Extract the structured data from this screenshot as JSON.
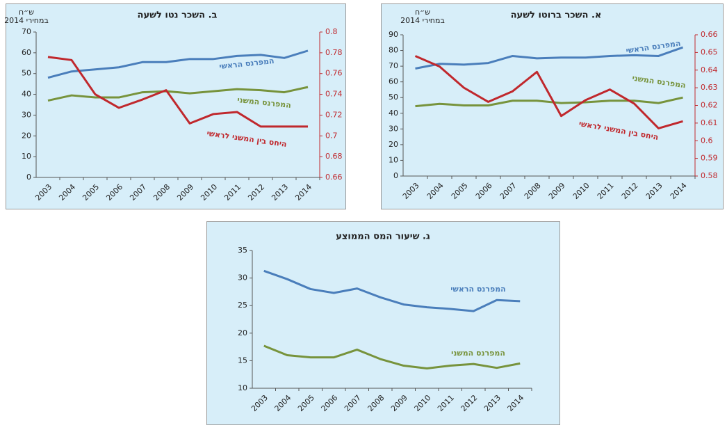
{
  "chart_data": [
    {
      "type": "line",
      "title": "א. השכר ברוטו לשעה",
      "ylabel": [
        "ש״ח",
        "במחירי 2014"
      ],
      "categories": [
        "2003",
        "2004",
        "2005",
        "2006",
        "2007",
        "2008",
        "2009",
        "2010",
        "2011",
        "2012",
        "2013",
        "2014"
      ],
      "series": [
        {
          "name": "המפרנס הראשי",
          "color": "#4a7ebb",
          "values": [
            68.5,
            71.5,
            71,
            72,
            76.5,
            75,
            75.5,
            75.5,
            76.5,
            77,
            76.5,
            82
          ]
        },
        {
          "name": "המפרנס המשני",
          "color": "#77933c",
          "values": [
            44.5,
            46,
            45,
            45,
            48,
            48,
            46.5,
            47,
            48,
            48,
            46.5,
            50
          ]
        },
        {
          "name": "היחס בין המשני לראשי",
          "color": "#c0282d",
          "axis": "y2",
          "values": [
            0.648,
            0.642,
            0.63,
            0.622,
            0.628,
            0.639,
            0.614,
            0.623,
            0.629,
            0.621,
            0.607,
            0.611
          ]
        }
      ],
      "ylim": [
        0,
        90
      ],
      "yticks": [
        0,
        10,
        20,
        30,
        40,
        50,
        60,
        70,
        80,
        90
      ],
      "y2lim": [
        0.58,
        0.66
      ],
      "y2ticks": [
        0.58,
        0.59,
        0.6,
        0.61,
        0.62,
        0.63,
        0.64,
        0.65,
        0.66
      ]
    },
    {
      "type": "line",
      "title": "ב. השכר נטו לשעה",
      "ylabel": [
        "ש״ח",
        "במחירי 2014"
      ],
      "categories": [
        "2003",
        "2004",
        "2005",
        "2006",
        "2007",
        "2008",
        "2009",
        "2010",
        "2011",
        "2012",
        "2013",
        "2014"
      ],
      "series": [
        {
          "name": "המפרנס הראשי",
          "color": "#4a7ebb",
          "values": [
            48,
            51,
            52,
            53,
            55.5,
            55.5,
            57,
            57,
            58.5,
            59,
            57.5,
            61
          ]
        },
        {
          "name": "המפרנס המשני",
          "color": "#77933c",
          "values": [
            37,
            39.5,
            38.5,
            38.5,
            41,
            41.5,
            40.5,
            41.5,
            42.5,
            42,
            41,
            43.5
          ]
        },
        {
          "name": "היחס בין המשני לראשי",
          "color": "#c0282d",
          "axis": "y2",
          "values": [
            0.776,
            0.773,
            0.74,
            0.727,
            0.735,
            0.744,
            0.712,
            0.721,
            0.723,
            0.709,
            0.709,
            0.709
          ]
        }
      ],
      "ylim": [
        0,
        70
      ],
      "yticks": [
        0,
        10,
        20,
        30,
        40,
        50,
        60,
        70
      ],
      "y2lim": [
        0.66,
        0.8
      ],
      "y2ticks": [
        0.66,
        0.68,
        0.7,
        0.72,
        0.74,
        0.76,
        0.78,
        0.8
      ]
    },
    {
      "type": "line",
      "title": "ג. שיעור המס הממוצע",
      "categories": [
        "2003",
        "2004",
        "2005",
        "2006",
        "2007",
        "2008",
        "2009",
        "2010",
        "2011",
        "2012",
        "2013",
        "2014"
      ],
      "series": [
        {
          "name": "המפרנס הראשי",
          "color": "#4a7ebb",
          "values": [
            31.3,
            29.8,
            28,
            27.3,
            28.1,
            26.5,
            25.2,
            24.7,
            24.4,
            24,
            26,
            25.8
          ]
        },
        {
          "name": "המפרנס המשני",
          "color": "#77933c",
          "values": [
            17.7,
            16,
            15.6,
            15.6,
            17,
            15.3,
            14.1,
            13.6,
            14.1,
            14.4,
            13.7,
            14.5
          ]
        }
      ],
      "ylim": [
        10,
        35
      ],
      "yticks": [
        10,
        15,
        20,
        25,
        30,
        35
      ]
    }
  ]
}
